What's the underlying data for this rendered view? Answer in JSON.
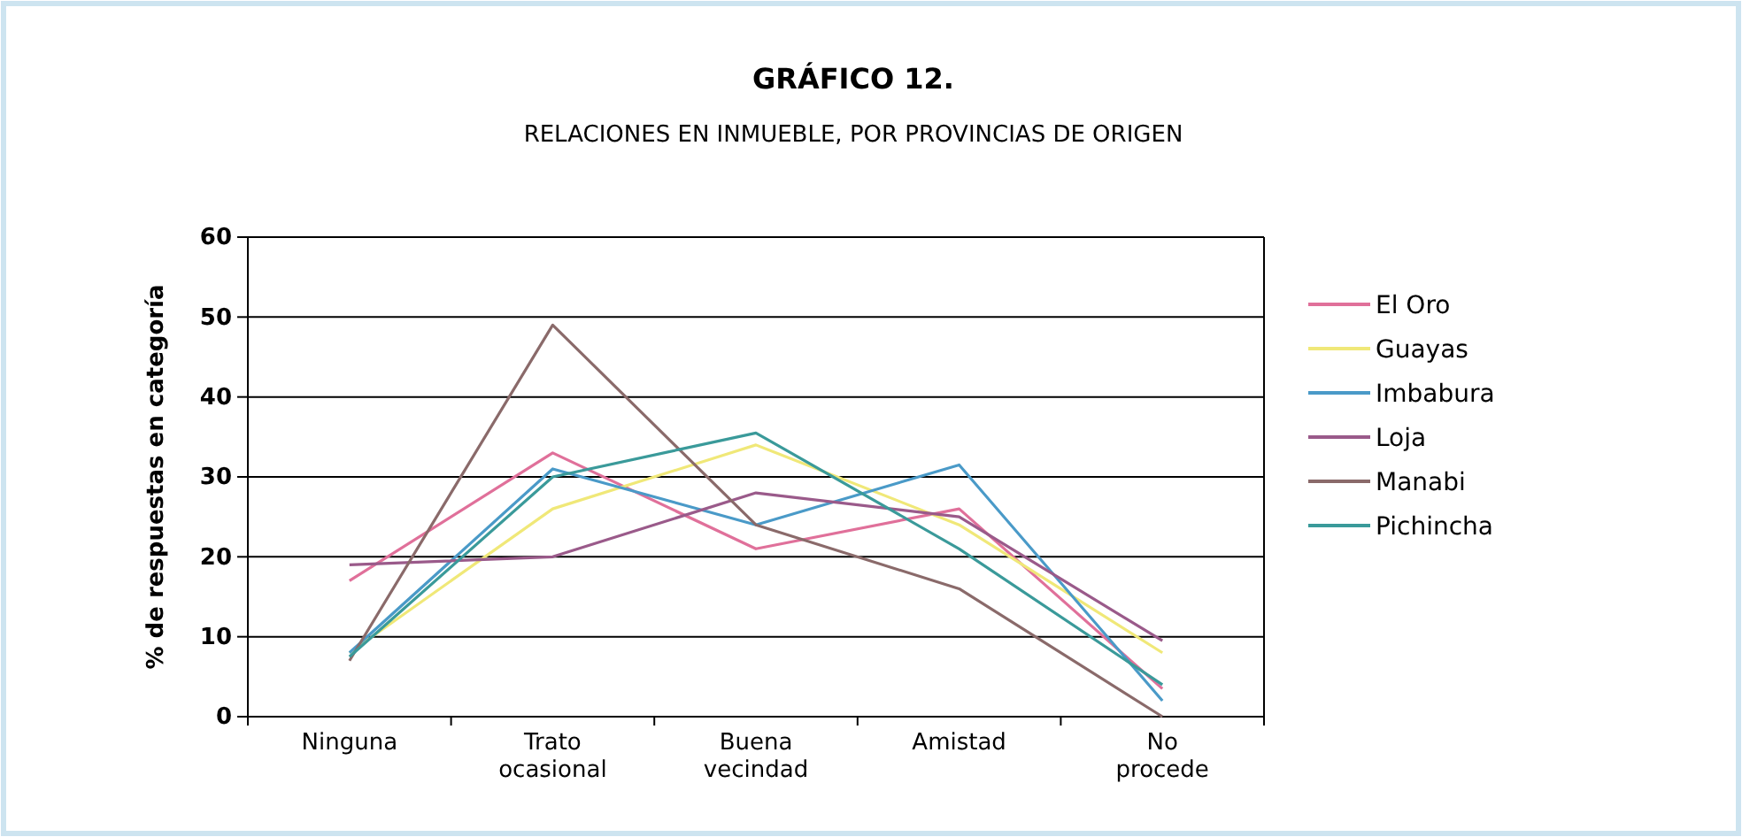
{
  "chart_data": {
    "type": "line",
    "title": "GRÁFICO 12.",
    "subtitle": "RELACIONES EN INMUEBLE, POR PROVINCIAS DE ORIGEN",
    "ylabel": "% de respuestas en categoría",
    "categories": [
      "Ninguna",
      "Trato ocasional",
      "Buena vecindad",
      "Amistad",
      "No procede"
    ],
    "series": [
      {
        "name": "El Oro",
        "color": "#e0709a",
        "values": [
          17,
          33,
          21,
          26,
          3.5
        ]
      },
      {
        "name": "Guayas",
        "color": "#f0e878",
        "values": [
          8,
          26,
          34,
          24,
          8
        ]
      },
      {
        "name": "Imbabura",
        "color": "#4a9ac8",
        "values": [
          8,
          31,
          24,
          31.5,
          2
        ]
      },
      {
        "name": "Loja",
        "color": "#9a5a8a",
        "values": [
          19,
          20,
          28,
          25,
          9.5
        ]
      },
      {
        "name": "Manabi",
        "color": "#8a6a6a",
        "values": [
          7,
          49,
          24,
          16,
          0
        ]
      },
      {
        "name": "Pichincha",
        "color": "#3a9a9a",
        "values": [
          7.5,
          30,
          35.5,
          21,
          4
        ]
      }
    ],
    "ylim": [
      0,
      60
    ],
    "yticks": [
      0,
      10,
      20,
      30,
      40,
      50,
      60
    ],
    "grid": "y",
    "legend": "right",
    "marker": "none",
    "line_style": "solid"
  }
}
